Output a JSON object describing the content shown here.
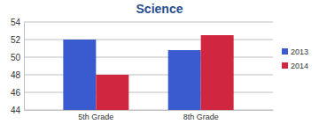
{
  "chart_data": {
    "type": "bar",
    "title": "Science",
    "categories": [
      "5th Grade",
      "8th Grade"
    ],
    "series": [
      {
        "name": "2013",
        "color": "#3a5bd0",
        "values": [
          52,
          50.8
        ]
      },
      {
        "name": "2014",
        "color": "#d0263f",
        "values": [
          48,
          52.5
        ]
      }
    ],
    "ylim": [
      44,
      54
    ],
    "yticks": [
      44,
      46,
      48,
      50,
      52,
      54
    ],
    "grid": true,
    "legend": "right"
  }
}
